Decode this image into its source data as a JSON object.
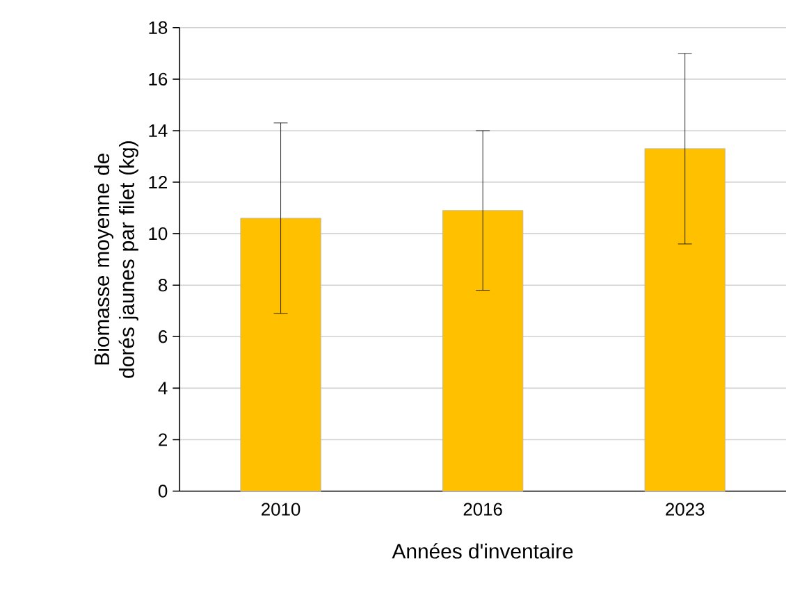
{
  "chart_data": {
    "type": "bar",
    "xlabel": "Années d'inventaire",
    "ylabel": "Biomasse moyenne de dorés jaunes par filet (kg)",
    "categories": [
      "2010",
      "2016",
      "2023"
    ],
    "values": [
      10.6,
      10.9,
      13.3
    ],
    "errors": [
      3.7,
      3.1,
      3.7
    ],
    "color": "#ffc000",
    "ylim": [
      0,
      18
    ],
    "yticks": [
      0,
      2,
      4,
      6,
      8,
      10,
      12,
      14,
      16,
      18
    ],
    "grid": "y"
  }
}
